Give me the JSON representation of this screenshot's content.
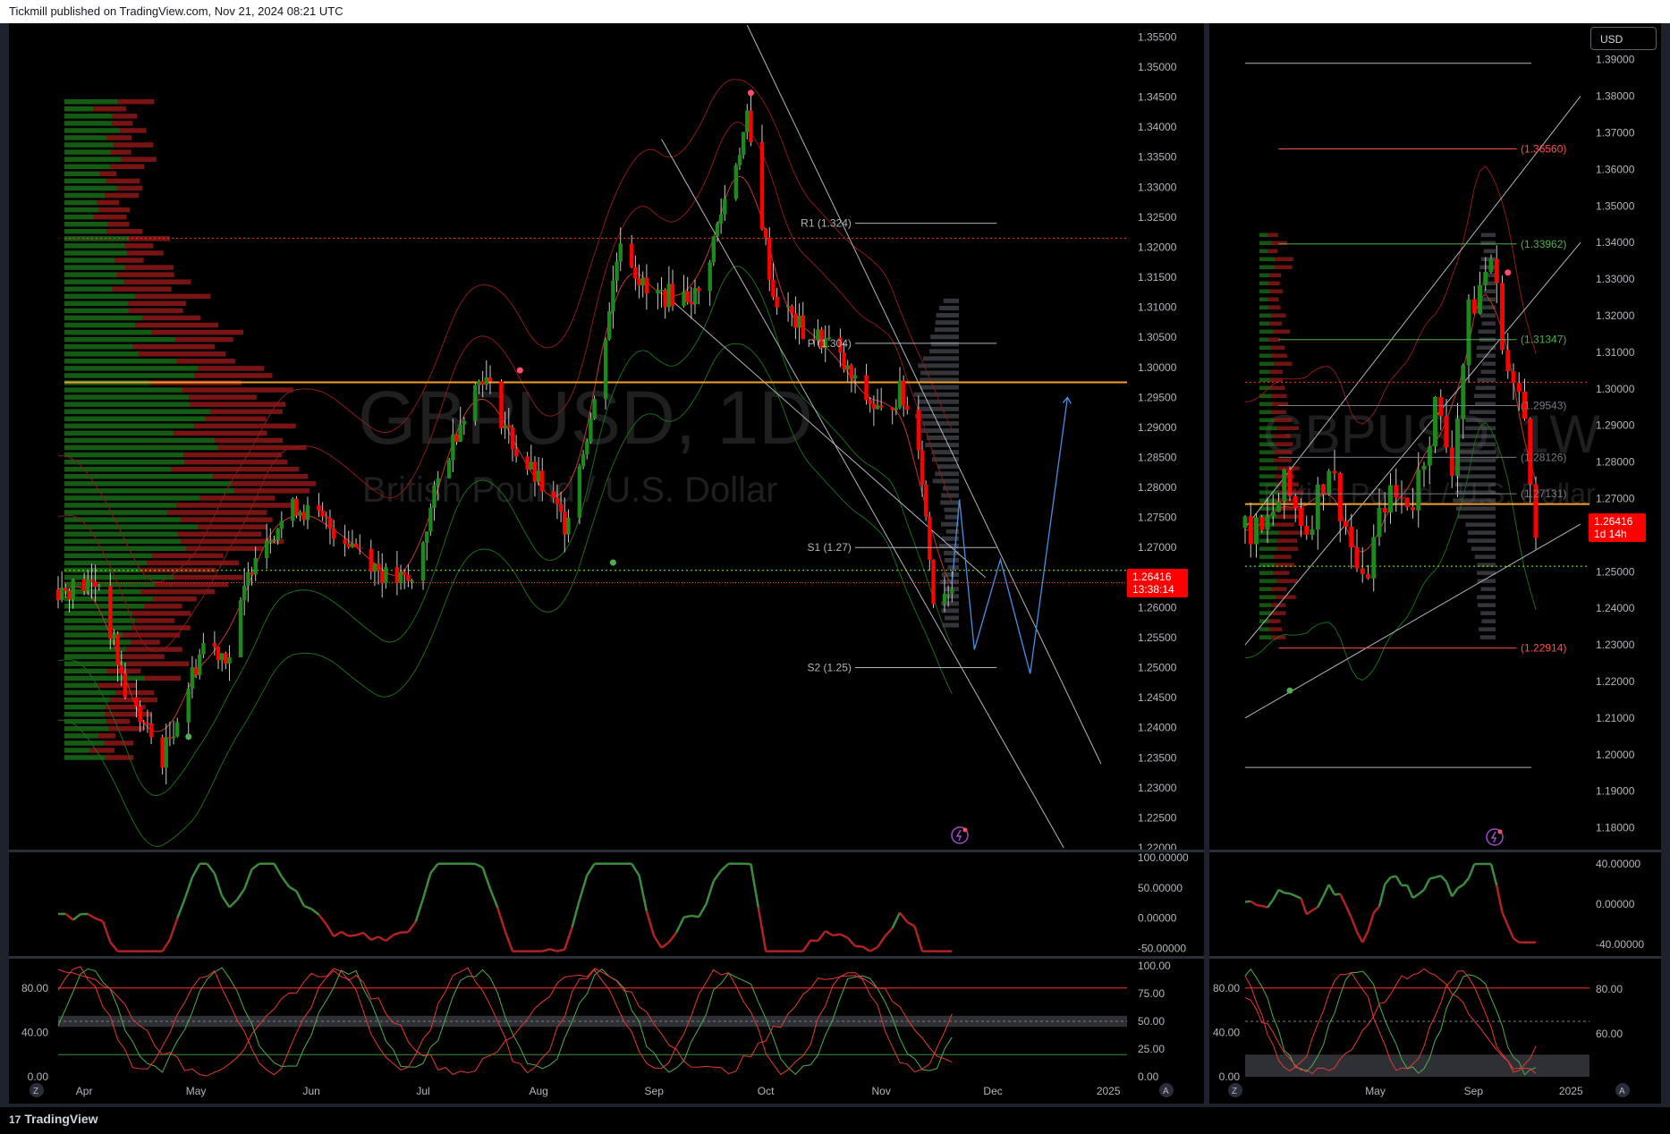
{
  "header": {
    "published": "Tickmill published on TradingView.com, Nov 21, 2024 08:21 UTC"
  },
  "footer": {
    "logo_text": "TradingView",
    "logo_mark": "17"
  },
  "currency_button": "USD",
  "colors": {
    "up": "#26a69a",
    "candle_up": "#1b8a1b",
    "candle_down": "#ff0000",
    "poc": "#f0a030",
    "bg": "#000000"
  },
  "left_chart": {
    "symbol": "GBPUSD, 1D",
    "description": "British Pound / U.S. Dollar",
    "price_axis": [
      "1.35500",
      "1.35000",
      "1.34500",
      "1.34000",
      "1.33500",
      "1.33000",
      "1.32500",
      "1.32000",
      "1.31500",
      "1.31000",
      "1.30500",
      "1.30000",
      "1.29500",
      "1.29000",
      "1.28500",
      "1.28000",
      "1.27500",
      "1.27000",
      "1.26500",
      "1.26000",
      "1.25500",
      "1.25000",
      "1.24500",
      "1.24000",
      "1.23500",
      "1.23000",
      "1.22500",
      "1.22000"
    ],
    "last_price": "1.26416",
    "countdown": "13:38:14",
    "levels": [
      {
        "label": "R1 (1.324)"
      },
      {
        "label": "P (1.304)"
      },
      {
        "label": "S1 (1.27)"
      },
      {
        "label": "S2 (1.25)"
      }
    ],
    "time_axis": [
      "Apr",
      "May",
      "Jun",
      "Jul",
      "Aug",
      "Sep",
      "Oct",
      "Nov",
      "Dec",
      "2025"
    ],
    "osc1_axis": [
      "100.00000",
      "50.00000",
      "0.00000",
      "-50.00000"
    ],
    "osc2_left_axis": [
      "80.00",
      "40.00",
      "0.00"
    ],
    "osc2_right_axis": [
      "100.00",
      "75.00",
      "50.00",
      "25.00",
      "0.00"
    ],
    "corner_left": "Z",
    "corner_right": "A"
  },
  "right_chart": {
    "symbol": "GBPUSD, 1W",
    "description": "British Pound / U.S. Dollar",
    "price_axis": [
      "1.39000",
      "1.38000",
      "1.37000",
      "1.36000",
      "1.35000",
      "1.34000",
      "1.33000",
      "1.32000",
      "1.31000",
      "1.30000",
      "1.29000",
      "1.28000",
      "1.27000",
      "1.26000",
      "1.25000",
      "1.24000",
      "1.23000",
      "1.22000",
      "1.21000",
      "1.20000",
      "1.19000",
      "1.18000"
    ],
    "last_price": "1.26416",
    "countdown": "1d 14h",
    "levels": [
      {
        "label": "(1.36560)",
        "color": "#ff4d4d"
      },
      {
        "label": "(1.33962)",
        "color": "#4caf50"
      },
      {
        "label": "(1.31347)",
        "color": "#4caf50"
      },
      {
        "label": "(1.29543)",
        "color": "#787b86"
      },
      {
        "label": "(1.28126)",
        "color": "#787b86"
      },
      {
        "label": "(1.27131)",
        "color": "#787b86"
      },
      {
        "label": "(1.22914)",
        "color": "#ff4d4d"
      }
    ],
    "time_axis": [
      "May",
      "Sep",
      "2025"
    ],
    "osc1_axis": [
      "40.00000",
      "0.00000",
      "-40.00000"
    ],
    "osc2_left_axis": [
      "80.00",
      "40.00",
      "0.00"
    ],
    "osc2_right_axis": [
      "80.00",
      "60.00"
    ],
    "corner_left": "Z",
    "corner_right": "A"
  },
  "chart_data": [
    {
      "type": "candlestick",
      "title": "GBPUSD, 1D",
      "subtitle": "British Pound / U.S. Dollar",
      "ylim": [
        1.22,
        1.357
      ],
      "x_range": [
        "2024-03-25",
        "2025-01-06"
      ],
      "last": 1.26416,
      "close_path": [
        [
          "2024-03-25",
          1.263
        ],
        [
          "2024-04-05",
          1.264
        ],
        [
          "2024-04-12",
          1.246
        ],
        [
          "2024-04-22",
          1.235
        ],
        [
          "2024-05-03",
          1.254
        ],
        [
          "2024-05-10",
          1.252
        ],
        [
          "2024-05-17",
          1.27
        ],
        [
          "2024-05-28",
          1.277
        ],
        [
          "2024-06-07",
          1.273
        ],
        [
          "2024-06-14",
          1.27
        ],
        [
          "2024-06-21",
          1.265
        ],
        [
          "2024-06-28",
          1.264
        ],
        [
          "2024-07-05",
          1.281
        ],
        [
          "2024-07-12",
          1.293
        ],
        [
          "2024-07-17",
          1.299
        ],
        [
          "2024-07-26",
          1.286
        ],
        [
          "2024-08-02",
          1.28
        ],
        [
          "2024-08-08",
          1.274
        ],
        [
          "2024-08-16",
          1.294
        ],
        [
          "2024-08-23",
          1.322
        ],
        [
          "2024-08-30",
          1.312
        ],
        [
          "2024-09-06",
          1.312
        ],
        [
          "2024-09-13",
          1.312
        ],
        [
          "2024-09-20",
          1.328
        ],
        [
          "2024-09-26",
          1.341
        ],
        [
          "2024-10-03",
          1.312
        ],
        [
          "2024-10-11",
          1.306
        ],
        [
          "2024-10-18",
          1.304
        ],
        [
          "2024-10-25",
          1.297
        ],
        [
          "2024-11-01",
          1.292
        ],
        [
          "2024-11-06",
          1.296
        ],
        [
          "2024-11-11",
          1.288
        ],
        [
          "2024-11-15",
          1.262
        ],
        [
          "2024-11-20",
          1.264
        ]
      ],
      "projection": [
        [
          "2024-11-20",
          1.264
        ],
        [
          "2024-11-22",
          1.278
        ],
        [
          "2024-11-26",
          1.253
        ],
        [
          "2024-12-03",
          1.268
        ],
        [
          "2024-12-11",
          1.249
        ],
        [
          "2024-12-21",
          1.295
        ]
      ],
      "pivot_levels": {
        "R1": 1.324,
        "P": 1.304,
        "S1": 1.27,
        "S2": 1.25
      },
      "poc": 1.2975
    },
    {
      "type": "candlestick",
      "title": "GBPUSD, 1W",
      "subtitle": "British Pound / U.S. Dollar",
      "ylim": [
        1.175,
        1.398
      ],
      "x_range": [
        "2023-11-20",
        "2025-01-13"
      ],
      "last": 1.26416,
      "close_path": [
        [
          "2023-11-20",
          1.262
        ],
        [
          "2023-12-11",
          1.26
        ],
        [
          "2024-01-08",
          1.273
        ],
        [
          "2024-02-05",
          1.262
        ],
        [
          "2024-03-04",
          1.28
        ],
        [
          "2024-04-15",
          1.245
        ],
        [
          "2024-05-13",
          1.27
        ],
        [
          "2024-06-17",
          1.27
        ],
        [
          "2024-07-15",
          1.295
        ],
        [
          "2024-08-05",
          1.28
        ],
        [
          "2024-08-26",
          1.32
        ],
        [
          "2024-09-23",
          1.336
        ],
        [
          "2024-10-14",
          1.305
        ],
        [
          "2024-11-04",
          1.292
        ],
        [
          "2024-11-18",
          1.264
        ]
      ],
      "fib_levels": [
        1.3656,
        1.33962,
        1.31347,
        1.29543,
        1.28126,
        1.27131,
        1.22914
      ]
    }
  ]
}
